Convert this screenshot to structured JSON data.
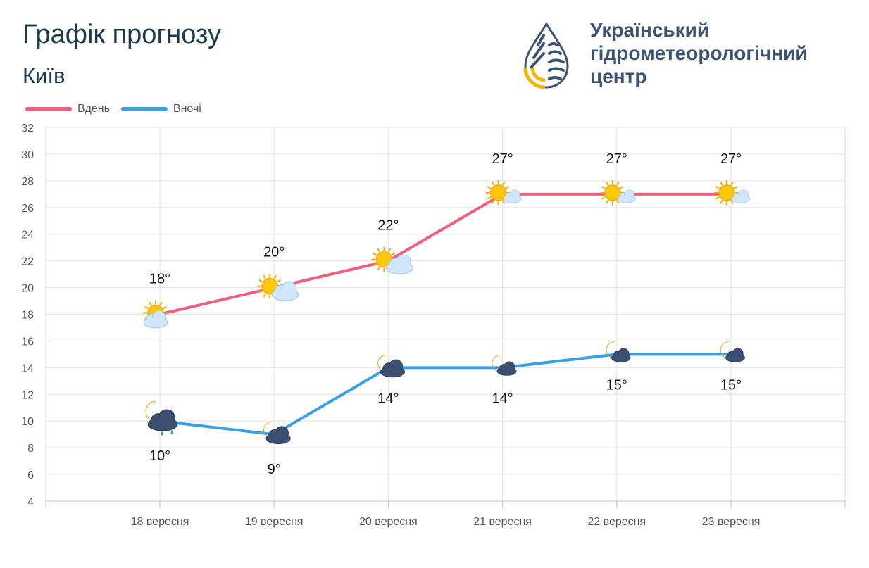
{
  "header": {
    "title": "Графік прогнозу",
    "city": "Київ"
  },
  "organization": {
    "line1": "Український",
    "line2": "гідрометеорологічний",
    "line3": "центр"
  },
  "legend": {
    "day": "Вдень",
    "night": "Вночі"
  },
  "colors": {
    "day": "#f0607e",
    "night": "#3a9fe3",
    "text_dark": "#1b3a4b",
    "org_text": "#3d5372",
    "logo_yellow": "#f2b705"
  },
  "chart_data": {
    "type": "line",
    "categories": [
      "18 вересня",
      "19 вересня",
      "20 вересня",
      "21 вересня",
      "22 вересня",
      "23 вересня"
    ],
    "series": [
      {
        "name": "Вдень",
        "values": [
          18,
          20,
          22,
          27,
          27,
          27
        ],
        "labels": [
          "18°",
          "20°",
          "22°",
          "27°",
          "27°",
          "27°"
        ],
        "icons": [
          "sun-cloud-icon",
          "sun-cloud-icon",
          "sun-cloud-icon",
          "sun-cloud-icon",
          "sun-cloud-icon",
          "sun-cloud-icon"
        ]
      },
      {
        "name": "Вночі",
        "values": [
          10,
          9,
          14,
          14,
          15,
          15
        ],
        "labels": [
          "10°",
          "9°",
          "14°",
          "14°",
          "15°",
          "15°"
        ],
        "icons": [
          "moon-cloud-rain-icon",
          "moon-cloud-icon",
          "moon-cloud-icon",
          "moon-cloud-icon",
          "moon-cloud-icon",
          "moon-cloud-icon"
        ]
      }
    ],
    "ylim": [
      4,
      32
    ],
    "yticks": [
      "4",
      "6",
      "8",
      "10",
      "12",
      "14",
      "16",
      "18",
      "20",
      "22",
      "24",
      "26",
      "28",
      "30",
      "32"
    ],
    "grid": true,
    "legend": "top-left"
  }
}
